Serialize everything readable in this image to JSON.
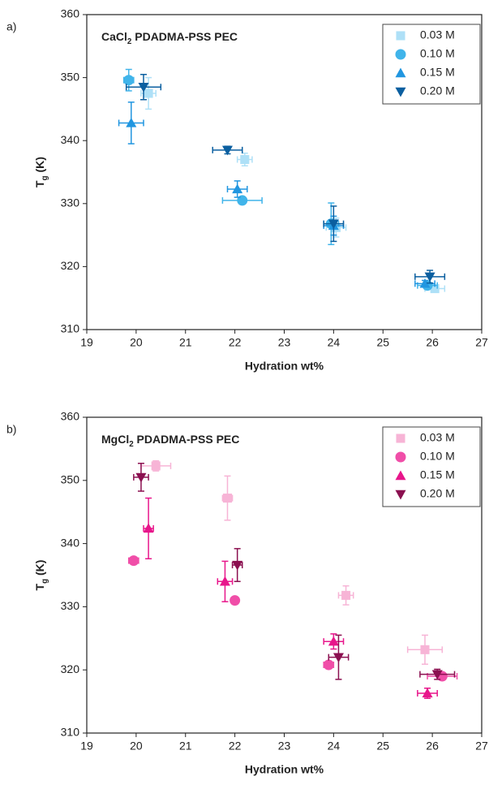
{
  "chart_data": [
    {
      "type": "scatter",
      "panel_label": "a)",
      "title": [
        "CaCl",
        "2",
        " PDADMA-PSS PEC"
      ],
      "xlabel": "Hydration wt%",
      "ylabel": [
        "T",
        "g",
        " (K)"
      ],
      "xlim": [
        19,
        27
      ],
      "xticks": [
        19,
        20,
        21,
        22,
        23,
        24,
        25,
        26,
        27
      ],
      "ylim": [
        310,
        360
      ],
      "yticks": [
        310,
        320,
        330,
        340,
        350,
        360
      ],
      "legend": "upper right",
      "series": [
        {
          "name": "0.03 M",
          "color": "#aee0f7",
          "marker": "square",
          "x": [
            20.25,
            22.2,
            24.05,
            26.05
          ],
          "values": [
            347.5,
            337,
            326.2,
            316.5
          ],
          "xerr": [
            0.15,
            0.15,
            0.2,
            0.2
          ],
          "yerr": [
            2.5,
            1,
            1.5,
            0.5
          ]
        },
        {
          "name": "0.10 M",
          "color": "#40b4ea",
          "marker": "circle",
          "x": [
            19.85,
            22.15,
            23.95,
            25.9
          ],
          "values": [
            349.6,
            330.5,
            326.8,
            317
          ],
          "xerr": [
            0.1,
            0.4,
            0.15,
            0.2
          ],
          "yerr": [
            1.7,
            0.5,
            3.3,
            0.5
          ]
        },
        {
          "name": "0.15 M",
          "color": "#2196e0",
          "marker": "triangle-up",
          "x": [
            19.9,
            22.05,
            24.0,
            25.85
          ],
          "values": [
            342.8,
            332.3,
            326.5,
            317.3
          ],
          "xerr": [
            0.25,
            0.2,
            0.2,
            0.2
          ],
          "yerr": [
            3.3,
            1.3,
            1.5,
            0.5
          ]
        },
        {
          "name": "0.20 M",
          "color": "#0b5fa0",
          "marker": "triangle-down",
          "x": [
            20.15,
            21.85,
            24.0,
            25.95
          ],
          "values": [
            348.5,
            338.5,
            326.8,
            318.4
          ],
          "xerr": [
            0.35,
            0.3,
            0.2,
            0.3
          ],
          "yerr": [
            2,
            0.6,
            2.8,
            1
          ]
        }
      ]
    },
    {
      "type": "scatter",
      "panel_label": "b)",
      "title": [
        "MgCl",
        "2",
        " PDADMA-PSS PEC"
      ],
      "xlabel": "Hydration wt%",
      "ylabel": [
        "T",
        "g",
        " (K)"
      ],
      "xlim": [
        19,
        27
      ],
      "xticks": [
        19,
        20,
        21,
        22,
        23,
        24,
        25,
        26,
        27
      ],
      "ylim": [
        310,
        360
      ],
      "yticks": [
        310,
        320,
        330,
        340,
        350,
        360
      ],
      "legend": "upper right",
      "series": [
        {
          "name": "0.03 M",
          "color": "#f7b4d6",
          "marker": "square",
          "x": [
            20.4,
            21.85,
            24.25,
            25.85
          ],
          "values": [
            352.3,
            347.2,
            331.8,
            323.2
          ],
          "xerr": [
            0.3,
            0.1,
            0.15,
            0.35
          ],
          "yerr": [
            0.8,
            3.5,
            1.5,
            2.3
          ]
        },
        {
          "name": "0.10 M",
          "color": "#f04ea8",
          "marker": "circle",
          "x": [
            19.95,
            22.0,
            23.9,
            26.2
          ],
          "values": [
            337.3,
            331.0,
            320.8,
            319
          ],
          "xerr": [
            0.1,
            0.05,
            0.1,
            0.3
          ],
          "yerr": [
            0.3,
            0.3,
            0.5,
            0.5
          ]
        },
        {
          "name": "0.15 M",
          "color": "#e8168b",
          "marker": "triangle-up",
          "x": [
            20.25,
            21.8,
            24.0,
            25.9
          ],
          "values": [
            342.4,
            334,
            324.5,
            316.3
          ],
          "xerr": [
            0.1,
            0.15,
            0.2,
            0.2
          ],
          "yerr": [
            4.8,
            3.2,
            1.2,
            0.8
          ]
        },
        {
          "name": "0.20 M",
          "color": "#8b1050",
          "marker": "triangle-down",
          "x": [
            20.1,
            22.05,
            24.1,
            26.1
          ],
          "values": [
            350.5,
            336.6,
            322,
            319.3
          ],
          "xerr": [
            0.15,
            0.1,
            0.2,
            0.35
          ],
          "yerr": [
            2.2,
            2.6,
            3.5,
            0.8
          ]
        }
      ]
    }
  ]
}
